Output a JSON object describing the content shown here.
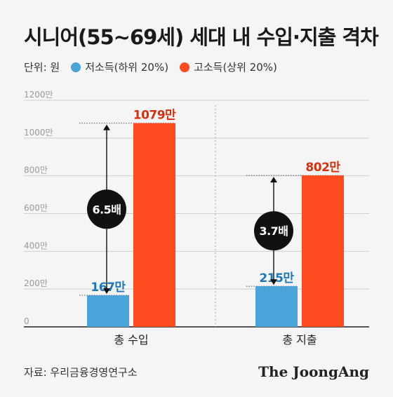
{
  "title": "시니어(55~69세) 세대 내 수입·지출 격차",
  "legend": {
    "unit": "단위: 원",
    "items": [
      {
        "label": "저소득(하위 20%)",
        "color": "#4aa3d9"
      },
      {
        "label": "고소득(상위 20%)",
        "color": "#ff4b1f"
      }
    ]
  },
  "source": "자료: 우리금융경영연구소",
  "brand": "The JoongAng",
  "chart_data": {
    "type": "bar",
    "categories": [
      "총 수입",
      "총 지출"
    ],
    "series": [
      {
        "name": "저소득(하위 20%)",
        "values": [
          167,
          215
        ],
        "labels": [
          "167만",
          "215만"
        ],
        "color": "#4aa3d9",
        "label_color": "#1f78b4"
      },
      {
        "name": "고소득(상위 20%)",
        "values": [
          1079,
          802
        ],
        "labels": [
          "1079만",
          "802만"
        ],
        "color": "#ff4b1f",
        "label_color": "#d92e0c"
      }
    ],
    "ratios": [
      "6.5배",
      "3.7배"
    ],
    "yticks": [
      0,
      200,
      400,
      600,
      800,
      1000,
      1200
    ],
    "ytick_labels": [
      "0",
      "200만",
      "400만",
      "600만",
      "800만",
      "1000만",
      "1200만"
    ],
    "ylim": [
      0,
      1200
    ],
    "grid": true
  }
}
